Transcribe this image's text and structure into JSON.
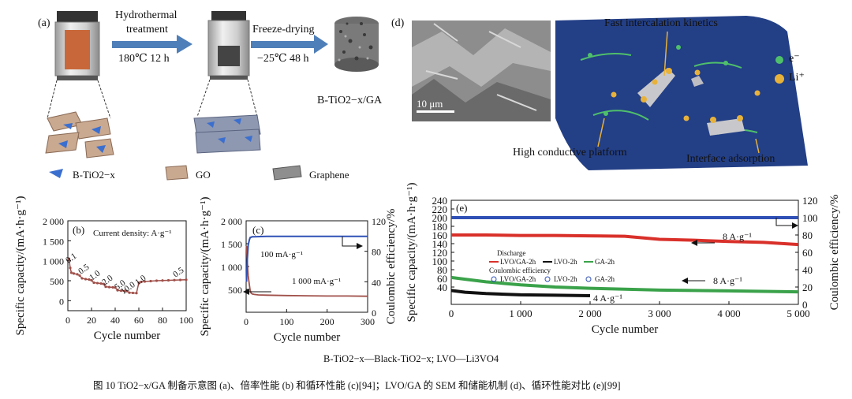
{
  "panel_a": {
    "label": "(a)",
    "step1_line1": "Hydrothermal",
    "step1_line2": "treatment",
    "step1_cond": "180℃ 12 h",
    "step2_line1": "Freeze-drying",
    "step2_cond": "−25℃ 48 h",
    "product": "B-TiO2−x/GA",
    "legend": [
      "B-TiO2−x",
      "GO",
      "Graphene"
    ]
  },
  "panel_d": {
    "label": "(d)",
    "scale": "10 μm",
    "top": "Fast intercalation kinetics",
    "left": "High conductive platform",
    "right": "Interface adsorption",
    "legend_e": "e⁻",
    "legend_li": "Li⁺"
  },
  "colors": {
    "arrow": "#4f7fb8",
    "red": "#d9302a",
    "green": "#3aa24a",
    "blue": "#2f50b5",
    "brown": "#a0504a",
    "sheet": "#233f86",
    "li": "#e8b23a"
  },
  "chart_data": [
    {
      "id": "b",
      "label": "(b)",
      "type": "line",
      "annotation": "Current density: A·g⁻¹",
      "xlabel": "Cycle number",
      "ylabel": "Specific capacity/(mA·h·g⁻¹)",
      "xlim": [
        0,
        100
      ],
      "ylim": [
        -250,
        2000
      ],
      "xticks": [
        "0",
        "20",
        "40",
        "60",
        "80",
        "100"
      ],
      "yticks": [
        "0",
        "500",
        "1 000",
        "1 500",
        "2 000"
      ],
      "rate_labels": [
        "0.1",
        "0.5",
        "1.0",
        "2.0",
        "5.0",
        "10.0",
        "1.0",
        "0.5"
      ],
      "series": [
        {
          "x": [
            1,
            2,
            3,
            5,
            8,
            10,
            12,
            15,
            18,
            20,
            22,
            25,
            28,
            30,
            32,
            35,
            38,
            40,
            42,
            45,
            48,
            50,
            52,
            55,
            58,
            60,
            62,
            65,
            70,
            75,
            80,
            85,
            90,
            95,
            100
          ],
          "y": [
            1050,
            820,
            700,
            680,
            660,
            630,
            560,
            540,
            530,
            510,
            450,
            440,
            430,
            420,
            350,
            340,
            335,
            330,
            260,
            250,
            245,
            240,
            200,
            195,
            190,
            450,
            470,
            480,
            490,
            500,
            505,
            510,
            515,
            520,
            525
          ]
        }
      ]
    },
    {
      "id": "c",
      "label": "(c)",
      "type": "line",
      "xlabel": "Cycle number",
      "ylabel": "Specific capacity/(mA·h·g⁻¹)",
      "ylabel_right": "Coulombic efficiency/%",
      "xlim": [
        0,
        300
      ],
      "ylim": [
        0,
        2000
      ],
      "ylim_right": [
        0,
        120
      ],
      "xticks": [
        "0",
        "100",
        "200",
        "300"
      ],
      "yticks": [
        "500",
        "1 000",
        "1 500",
        "2 000"
      ],
      "yticks_right": [
        "0",
        "40",
        "80",
        "120"
      ],
      "annotations": [
        "100 mA·g⁻¹",
        "1 000 mA·g⁻¹"
      ],
      "series": [
        {
          "x": [
            1,
            3,
            5,
            8,
            10,
            12,
            15,
            20,
            30,
            50,
            100,
            150,
            200,
            250,
            300
          ],
          "y": [
            1450,
            1100,
            800,
            600,
            480,
            420,
            400,
            390,
            380,
            375,
            365,
            360,
            355,
            355,
            350
          ]
        },
        {
          "x": [
            1,
            3,
            5,
            8,
            10,
            15,
            20,
            50,
            100,
            200,
            300
          ],
          "y_right": [
            40,
            70,
            88,
            95,
            98,
            99,
            99,
            99.5,
            99.5,
            99.5,
            99.5
          ]
        }
      ]
    },
    {
      "id": "e",
      "label": "(e)",
      "type": "line",
      "xlabel": "Cycle number",
      "ylabel": "Specific capacity/(mA·h·g⁻¹)",
      "ylabel_right": "Coulombic efficiency/%",
      "xlim": [
        0,
        5000
      ],
      "ylim": [
        0,
        240
      ],
      "ylim_right": [
        0,
        120
      ],
      "xticks": [
        "0",
        "1 000",
        "2 000",
        "3 000",
        "4 000",
        "5 000"
      ],
      "yticks": [
        "40",
        "60",
        "80",
        "100",
        "120",
        "140",
        "160",
        "180",
        "200",
        "220",
        "240"
      ],
      "yticks_right": [
        "0",
        "20",
        "40",
        "60",
        "80",
        "100",
        "120"
      ],
      "legend_discharge": "Discharge",
      "legend_ce": "Coulombic efficiency",
      "legend_items": [
        "LVO/GA-2h",
        "LVO-2h",
        "GA-2h"
      ],
      "annotations": [
        "8 A·g⁻¹",
        "8 A·g⁻¹",
        "4 A·g⁻¹"
      ],
      "series": [
        {
          "name": "LVO/GA-2h",
          "x": [
            0,
            500,
            1000,
            1500,
            2000,
            2500,
            3000,
            3500,
            4000,
            4500,
            5000
          ],
          "y": [
            160,
            160,
            159,
            159,
            158,
            157,
            150,
            148,
            145,
            143,
            138
          ]
        },
        {
          "name": "LVO-2h",
          "x": [
            0,
            200,
            500,
            1000,
            1500,
            2000
          ],
          "y": [
            32,
            28,
            25,
            22,
            21,
            20
          ]
        },
        {
          "name": "GA-2h",
          "x": [
            0,
            200,
            500,
            1000,
            1500,
            2000,
            2500,
            3000,
            3500,
            4000,
            4500,
            5000
          ],
          "y": [
            62,
            58,
            52,
            45,
            40,
            37,
            35,
            33,
            32,
            31,
            30,
            29
          ]
        },
        {
          "name": "CE",
          "x": [
            0,
            5000
          ],
          "y_right": [
            100,
            100
          ]
        }
      ]
    }
  ],
  "abbrev_line": "B-TiO2−x—Black-TiO2−x; LVO—Li3VO4",
  "caption": "图 10   TiO2−x/GA 制备示意图 (a)、倍率性能 (b) 和循环性能 (c)[94]；LVO/GA 的 SEM 和储能机制 (d)、循环性能对比 (e)[99]"
}
